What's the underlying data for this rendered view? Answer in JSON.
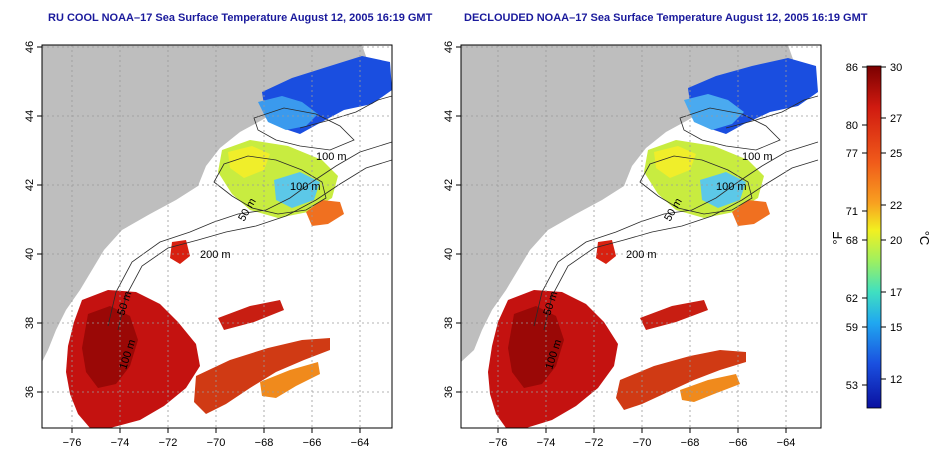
{
  "panels": [
    {
      "title": "RU COOL NOAA–17 Sea Surface Temperature August 12, 2005 16:19 GMT",
      "contours": [
        {
          "label": "100 m"
        },
        {
          "label": "100 m"
        },
        {
          "label": "50 m"
        },
        {
          "label": "200 m"
        },
        {
          "label": "50 m"
        },
        {
          "label": "100 m"
        }
      ]
    },
    {
      "title": "DECLOUDED NOAA–17 Sea Surface Temperature August 12, 2005 16:19 GMT",
      "contours": [
        {
          "label": "100 m"
        },
        {
          "label": "100 m"
        },
        {
          "label": "50 m"
        },
        {
          "label": "200 m"
        },
        {
          "label": "50 m"
        },
        {
          "label": "100 m"
        }
      ]
    }
  ],
  "axes": {
    "x_ticks": [
      "−76",
      "−74",
      "−72",
      "−70",
      "−68",
      "−66",
      "−64"
    ],
    "y_ticks": [
      "46",
      "44",
      "42",
      "40",
      "38",
      "36"
    ]
  },
  "colorbar": {
    "fahrenheit_ticks": [
      "86",
      "80",
      "77",
      "71",
      "68",
      "62",
      "59",
      "53"
    ],
    "celsius_ticks": [
      "30",
      "27",
      "25",
      "22",
      "20",
      "17",
      "15",
      "12"
    ],
    "fahrenheit_unit": "°F",
    "celsius_unit": "°C",
    "range_celsius": [
      10,
      30
    ],
    "colors": [
      "#7a0000",
      "#d01a10",
      "#f05a1a",
      "#f8a020",
      "#f2f020",
      "#9ef060",
      "#40e0c0",
      "#20a8f0",
      "#1a50e0",
      "#0a10a0"
    ]
  },
  "colors": {
    "land": "#bebebe",
    "ocean": "#ffffff",
    "title": "#1a1a9c",
    "grid": "#9a9a9a"
  }
}
